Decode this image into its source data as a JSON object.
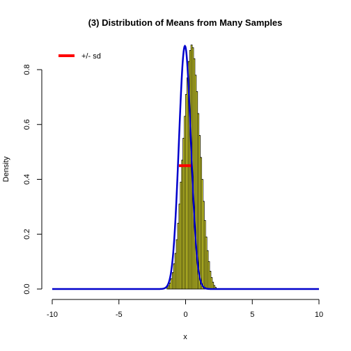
{
  "chart_data": {
    "type": "bar",
    "title": "(3) Distribution of Means from Many Samples",
    "xlabel": "x",
    "ylabel": "Density",
    "xlim": [
      -10,
      10
    ],
    "ylim": [
      0,
      0.9
    ],
    "xticks": [
      -10,
      -5,
      0,
      5,
      10
    ],
    "yticks": [
      0.0,
      0.2,
      0.4,
      0.6,
      0.8
    ],
    "xtick_labels": [
      "-10",
      "-5",
      "0",
      "5",
      "10"
    ],
    "ytick_labels": [
      "0.0",
      "0.2",
      "0.4",
      "0.6",
      "0.8"
    ],
    "histogram": {
      "bin_width": 0.1,
      "bin_start": -1.4,
      "values": [
        0.005,
        0.012,
        0.022,
        0.038,
        0.06,
        0.092,
        0.13,
        0.18,
        0.24,
        0.31,
        0.39,
        0.47,
        0.55,
        0.63,
        0.71,
        0.77,
        0.83,
        0.87,
        0.89,
        0.88,
        0.84,
        0.78,
        0.72,
        0.64,
        0.56,
        0.48,
        0.4,
        0.32,
        0.25,
        0.19,
        0.14,
        0.1,
        0.065,
        0.042,
        0.025,
        0.013,
        0.006
      ]
    },
    "density_curve": {
      "mean": -0.05,
      "sd": 0.45,
      "color": "#0000cc"
    },
    "sd_segment": {
      "x_from": -0.5,
      "x_to": 0.4,
      "y": 0.45,
      "color": "#ff0000"
    },
    "legend": {
      "label": "+/- sd",
      "color": "#ff0000",
      "position": "top-left"
    },
    "bar_fill": "#ffff33",
    "bar_stroke": "#000000"
  }
}
